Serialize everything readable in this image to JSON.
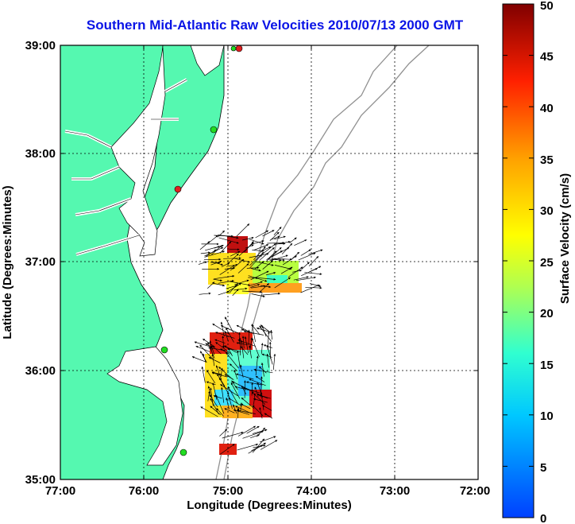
{
  "map": {
    "title": "Southern Mid-Atlantic Raw Velocities 2010/07/13 2000 GMT",
    "xlabel": "Longitude (Degrees:Minutes)",
    "ylabel": "Latitude (Degrees:Minutes)",
    "x_ticks": [
      "77:00",
      "76:00",
      "75:00",
      "74:00",
      "73:00",
      "72:00"
    ],
    "y_ticks": [
      "39:00",
      "38:00",
      "37:00",
      "36:00",
      "35:00"
    ],
    "grid": true,
    "land_color": "#55f8b0",
    "bathymetry_color": "#909090",
    "coast_color": "#000000",
    "station_colors": {
      "active": "#22dd22",
      "inactive": "#e02020"
    }
  },
  "colorbar": {
    "label": "Surface Velocity (cm/s)",
    "ticks": [
      "50",
      "45",
      "40",
      "35",
      "30",
      "25",
      "20",
      "15",
      "10",
      "5",
      "0"
    ],
    "range": [
      0,
      50
    ]
  }
}
